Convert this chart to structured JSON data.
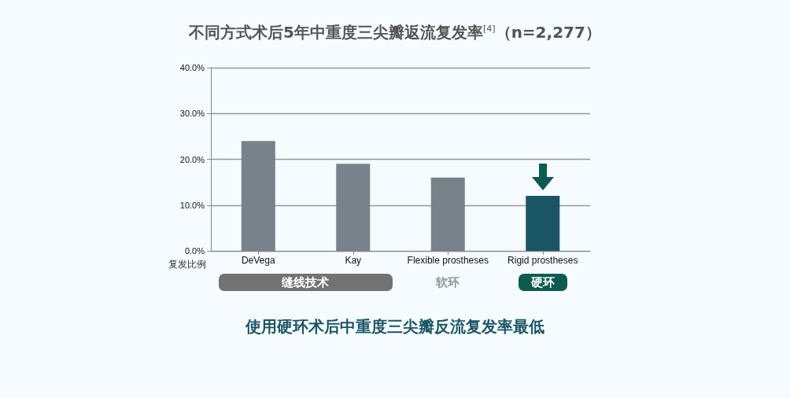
{
  "chart_data": {
    "type": "bar",
    "title": "不同方式术后5年中重度三尖瓣返流复发率$^{[4]}$（n=2,277）",
    "ylabel": "复发比例",
    "categories": [
      "DeVega",
      "Kay",
      "Flexible prostheses",
      "Rigid prostheses"
    ],
    "values": [
      24,
      19,
      16,
      12
    ],
    "colors": [
      "#78828a",
      "#78828a",
      "#78828a",
      "#1a5566"
    ],
    "ylim": [
      0,
      40
    ],
    "yticks": [
      {
        "value": 0,
        "label": "0.0%"
      },
      {
        "value": 10,
        "label": "10.0%"
      },
      {
        "value": 20,
        "label": "20.0%"
      },
      {
        "value": 30,
        "label": "30.0%"
      },
      {
        "value": 40,
        "label": "40.0%"
      }
    ],
    "grid": "y",
    "annotations": [
      "缝线技术",
      "软环",
      "硬环",
      "使用硬环术后中重度三尖瓣反流复发率最低"
    ]
  }
}
